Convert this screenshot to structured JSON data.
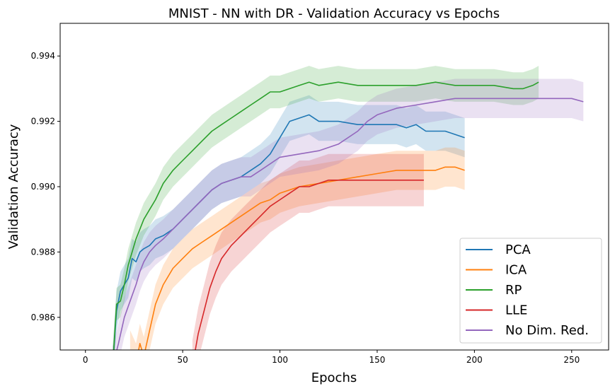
{
  "chart_data": {
    "type": "line",
    "title": "MNIST - NN with DR - Validation Accuracy vs Epochs",
    "xlabel": "Epochs",
    "ylabel": "Validation Accuracy",
    "xlim": [
      -13,
      269
    ],
    "ylim": [
      0.985,
      0.995
    ],
    "xticks": [
      0,
      50,
      100,
      150,
      200,
      250
    ],
    "yticks": [
      0.986,
      0.988,
      0.99,
      0.992,
      0.994
    ],
    "ytick_labels": [
      "0.986",
      "0.988",
      "0.990",
      "0.992",
      "0.994"
    ],
    "grid": false,
    "legend_position": "lower-right",
    "series": [
      {
        "name": "PCA",
        "color": "#1f77b4",
        "band": 0.0006,
        "points": [
          [
            14,
            0.9845
          ],
          [
            16,
            0.9862
          ],
          [
            18,
            0.9868
          ],
          [
            20,
            0.987
          ],
          [
            22,
            0.9872
          ],
          [
            24,
            0.9878
          ],
          [
            26,
            0.9877
          ],
          [
            28,
            0.988
          ],
          [
            30,
            0.9881
          ],
          [
            33,
            0.9882
          ],
          [
            36,
            0.9884
          ],
          [
            40,
            0.9885
          ],
          [
            45,
            0.9887
          ],
          [
            50,
            0.989
          ],
          [
            55,
            0.9893
          ],
          [
            60,
            0.9896
          ],
          [
            65,
            0.9899
          ],
          [
            70,
            0.9901
          ],
          [
            75,
            0.9902
          ],
          [
            80,
            0.9903
          ],
          [
            85,
            0.9905
          ],
          [
            90,
            0.9907
          ],
          [
            95,
            0.991
          ],
          [
            100,
            0.9915
          ],
          [
            105,
            0.992
          ],
          [
            110,
            0.9921
          ],
          [
            115,
            0.9922
          ],
          [
            120,
            0.992
          ],
          [
            130,
            0.992
          ],
          [
            140,
            0.9919
          ],
          [
            150,
            0.9919
          ],
          [
            160,
            0.9919
          ],
          [
            165,
            0.9918
          ],
          [
            170,
            0.9919
          ],
          [
            175,
            0.9917
          ],
          [
            180,
            0.9917
          ],
          [
            185,
            0.9917
          ],
          [
            190,
            0.9916
          ],
          [
            195,
            0.9915
          ]
        ]
      },
      {
        "name": "ICA",
        "color": "#ff7f0e",
        "band": 0.0006,
        "points": [
          [
            23,
            0.985
          ],
          [
            26,
            0.9846
          ],
          [
            28,
            0.9852
          ],
          [
            30,
            0.9848
          ],
          [
            33,
            0.9856
          ],
          [
            36,
            0.9864
          ],
          [
            40,
            0.987
          ],
          [
            45,
            0.9875
          ],
          [
            50,
            0.9878
          ],
          [
            55,
            0.9881
          ],
          [
            60,
            0.9883
          ],
          [
            65,
            0.9885
          ],
          [
            70,
            0.9887
          ],
          [
            75,
            0.9889
          ],
          [
            80,
            0.9891
          ],
          [
            85,
            0.9893
          ],
          [
            90,
            0.9895
          ],
          [
            95,
            0.9896
          ],
          [
            100,
            0.9898
          ],
          [
            105,
            0.9899
          ],
          [
            110,
            0.99
          ],
          [
            120,
            0.9901
          ],
          [
            130,
            0.9902
          ],
          [
            140,
            0.9903
          ],
          [
            150,
            0.9904
          ],
          [
            160,
            0.9905
          ],
          [
            170,
            0.9905
          ],
          [
            180,
            0.9905
          ],
          [
            185,
            0.9906
          ],
          [
            190,
            0.9906
          ],
          [
            195,
            0.9905
          ]
        ]
      },
      {
        "name": "RP",
        "color": "#2ca02c",
        "band": 0.0005,
        "points": [
          [
            14,
            0.9845
          ],
          [
            16,
            0.9864
          ],
          [
            18,
            0.9865
          ],
          [
            20,
            0.987
          ],
          [
            22,
            0.9876
          ],
          [
            24,
            0.988
          ],
          [
            26,
            0.9884
          ],
          [
            28,
            0.9887
          ],
          [
            30,
            0.989
          ],
          [
            33,
            0.9893
          ],
          [
            36,
            0.9896
          ],
          [
            40,
            0.9901
          ],
          [
            45,
            0.9905
          ],
          [
            50,
            0.9908
          ],
          [
            55,
            0.9911
          ],
          [
            60,
            0.9914
          ],
          [
            65,
            0.9917
          ],
          [
            70,
            0.9919
          ],
          [
            75,
            0.9921
          ],
          [
            80,
            0.9923
          ],
          [
            85,
            0.9925
          ],
          [
            90,
            0.9927
          ],
          [
            95,
            0.9929
          ],
          [
            100,
            0.9929
          ],
          [
            105,
            0.993
          ],
          [
            110,
            0.9931
          ],
          [
            115,
            0.9932
          ],
          [
            120,
            0.9931
          ],
          [
            130,
            0.9932
          ],
          [
            140,
            0.9931
          ],
          [
            150,
            0.9931
          ],
          [
            160,
            0.9931
          ],
          [
            170,
            0.9931
          ],
          [
            180,
            0.9932
          ],
          [
            190,
            0.9931
          ],
          [
            200,
            0.9931
          ],
          [
            210,
            0.9931
          ],
          [
            220,
            0.993
          ],
          [
            225,
            0.993
          ],
          [
            230,
            0.9931
          ],
          [
            233,
            0.9932
          ]
        ]
      },
      {
        "name": "LLE",
        "color": "#d62728",
        "band": 0.0008,
        "points": [
          [
            55,
            0.9845
          ],
          [
            58,
            0.9855
          ],
          [
            61,
            0.9862
          ],
          [
            64,
            0.9869
          ],
          [
            67,
            0.9874
          ],
          [
            70,
            0.9878
          ],
          [
            75,
            0.9882
          ],
          [
            80,
            0.9885
          ],
          [
            85,
            0.9888
          ],
          [
            90,
            0.9891
          ],
          [
            95,
            0.9894
          ],
          [
            100,
            0.9896
          ],
          [
            105,
            0.9898
          ],
          [
            110,
            0.99
          ],
          [
            115,
            0.99
          ],
          [
            120,
            0.9901
          ],
          [
            125,
            0.9902
          ],
          [
            130,
            0.9902
          ],
          [
            135,
            0.9902
          ],
          [
            140,
            0.9902
          ],
          [
            150,
            0.9902
          ],
          [
            160,
            0.9902
          ],
          [
            165,
            0.9902
          ],
          [
            174,
            0.9902
          ]
        ]
      },
      {
        "name": "No Dim. Red.",
        "color": "#9467bd",
        "band": 0.0006,
        "points": [
          [
            14,
            0.9845
          ],
          [
            17,
            0.9852
          ],
          [
            20,
            0.986
          ],
          [
            23,
            0.9865
          ],
          [
            26,
            0.987
          ],
          [
            28,
            0.9874
          ],
          [
            30,
            0.9877
          ],
          [
            33,
            0.988
          ],
          [
            36,
            0.9882
          ],
          [
            40,
            0.9884
          ],
          [
            45,
            0.9887
          ],
          [
            50,
            0.989
          ],
          [
            55,
            0.9893
          ],
          [
            60,
            0.9896
          ],
          [
            65,
            0.9899
          ],
          [
            70,
            0.9901
          ],
          [
            75,
            0.9902
          ],
          [
            80,
            0.9903
          ],
          [
            85,
            0.9903
          ],
          [
            90,
            0.9905
          ],
          [
            95,
            0.9907
          ],
          [
            100,
            0.9909
          ],
          [
            110,
            0.991
          ],
          [
            120,
            0.9911
          ],
          [
            130,
            0.9913
          ],
          [
            140,
            0.9917
          ],
          [
            145,
            0.992
          ],
          [
            150,
            0.9922
          ],
          [
            160,
            0.9924
          ],
          [
            170,
            0.9925
          ],
          [
            180,
            0.9926
          ],
          [
            190,
            0.9927
          ],
          [
            200,
            0.9927
          ],
          [
            210,
            0.9927
          ],
          [
            220,
            0.9927
          ],
          [
            230,
            0.9927
          ],
          [
            240,
            0.9927
          ],
          [
            250,
            0.9927
          ],
          [
            256,
            0.9926
          ]
        ]
      }
    ]
  }
}
